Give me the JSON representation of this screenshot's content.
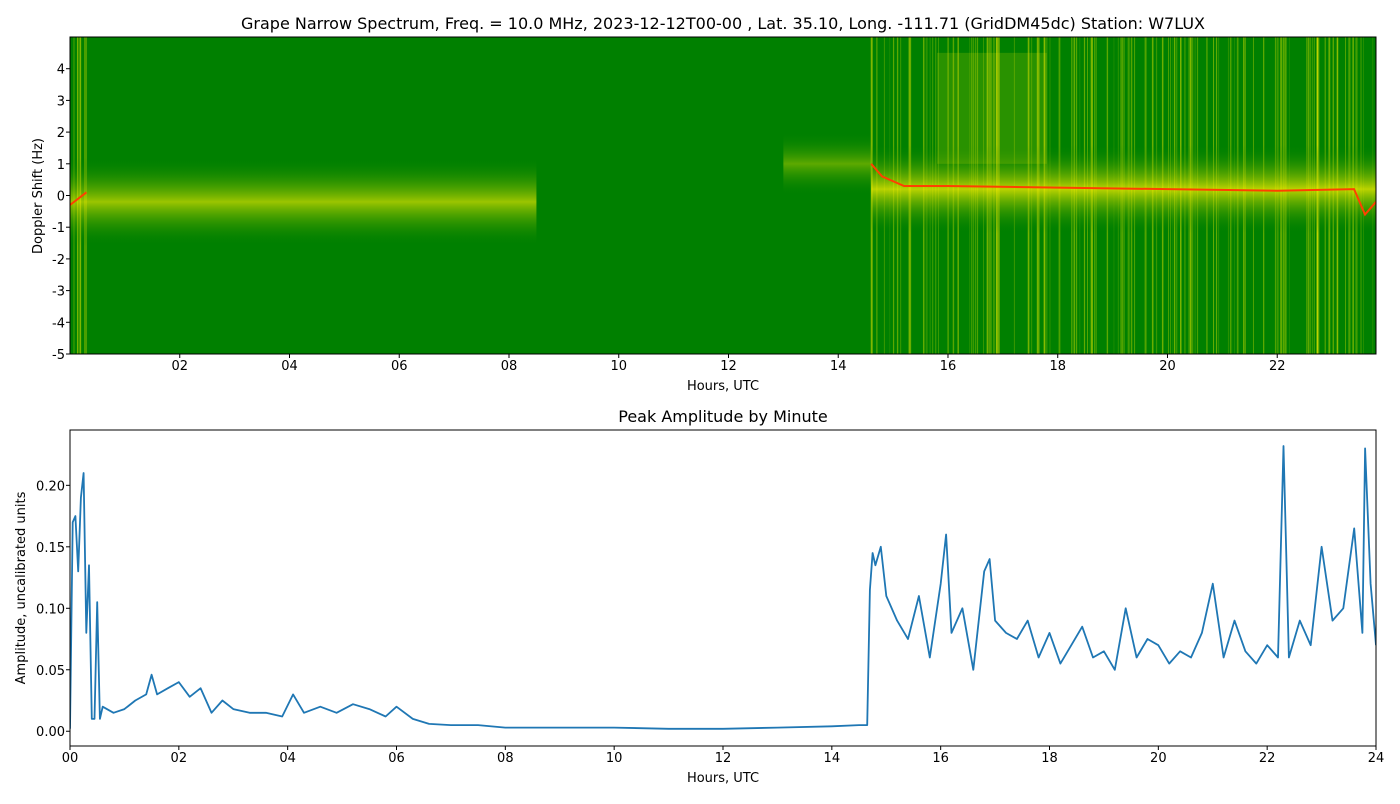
{
  "chart_data": [
    {
      "type": "heatmap",
      "title": "Grape Narrow Spectrum, Freq. = 10.0 MHz, 2023-12-12T00-00 , Lat.  35.10, Long. -111.71 (GridDM45dc) Station: W7LUX",
      "xlabel": "Hours, UTC",
      "ylabel": "Doppler Shift (Hz)",
      "xlim": [
        0,
        23.8
      ],
      "ylim": [
        -5,
        5
      ],
      "xticks": [
        "02",
        "04",
        "06",
        "08",
        "10",
        "12",
        "14",
        "16",
        "18",
        "20",
        "22"
      ],
      "yticks": [
        "-5",
        "-4",
        "-3",
        "-2",
        "-1",
        "0",
        "1",
        "2",
        "3",
        "4"
      ],
      "colors": {
        "background": "#008000",
        "mid": "#e6e600",
        "peak": "#ff4000"
      },
      "peak_doppler": {
        "x": [
          0,
          0.3,
          14.6,
          14.8,
          15.2,
          16,
          18,
          20,
          22,
          23.4,
          23.6,
          23.8
        ],
        "y": [
          -0.3,
          0.1,
          1.0,
          0.6,
          0.3,
          0.3,
          0.25,
          0.2,
          0.15,
          0.2,
          -0.6,
          -0.2
        ]
      }
    },
    {
      "type": "line",
      "title": "Peak Amplitude by Minute",
      "xlabel": "Hours, UTC",
      "ylabel": "Amplitude, uncalibrated units",
      "xlim": [
        0,
        24
      ],
      "ylim": [
        -0.012,
        0.245
      ],
      "xticks": [
        "00",
        "02",
        "04",
        "06",
        "08",
        "10",
        "12",
        "14",
        "16",
        "18",
        "20",
        "22",
        "24"
      ],
      "yticks": [
        "0.00",
        "0.05",
        "0.10",
        "0.15",
        "0.20"
      ],
      "color": "#1f77b4",
      "x": [
        0,
        0.05,
        0.1,
        0.15,
        0.2,
        0.25,
        0.3,
        0.35,
        0.4,
        0.45,
        0.5,
        0.55,
        0.6,
        0.8,
        1.0,
        1.2,
        1.4,
        1.5,
        1.6,
        1.8,
        2.0,
        2.2,
        2.4,
        2.6,
        2.8,
        3.0,
        3.3,
        3.6,
        3.9,
        4.1,
        4.3,
        4.6,
        4.9,
        5.2,
        5.5,
        5.8,
        6.0,
        6.3,
        6.6,
        7.0,
        7.5,
        8.0,
        9.0,
        10.0,
        11.0,
        12.0,
        13.0,
        14.0,
        14.5,
        14.65,
        14.7,
        14.75,
        14.8,
        14.9,
        15.0,
        15.2,
        15.4,
        15.6,
        15.8,
        16.0,
        16.1,
        16.2,
        16.4,
        16.6,
        16.8,
        16.9,
        17.0,
        17.2,
        17.4,
        17.6,
        17.8,
        18.0,
        18.2,
        18.4,
        18.6,
        18.8,
        19.0,
        19.2,
        19.4,
        19.6,
        19.8,
        20.0,
        20.2,
        20.4,
        20.6,
        20.8,
        21.0,
        21.2,
        21.4,
        21.6,
        21.8,
        22.0,
        22.2,
        22.3,
        22.4,
        22.6,
        22.8,
        23.0,
        23.2,
        23.4,
        23.6,
        23.75,
        23.8,
        23.9,
        24.0
      ],
      "y": [
        0.002,
        0.17,
        0.175,
        0.13,
        0.19,
        0.21,
        0.08,
        0.135,
        0.01,
        0.01,
        0.105,
        0.01,
        0.02,
        0.015,
        0.018,
        0.025,
        0.03,
        0.046,
        0.03,
        0.035,
        0.04,
        0.028,
        0.035,
        0.015,
        0.025,
        0.018,
        0.015,
        0.015,
        0.012,
        0.03,
        0.015,
        0.02,
        0.015,
        0.022,
        0.018,
        0.012,
        0.02,
        0.01,
        0.006,
        0.005,
        0.005,
        0.003,
        0.003,
        0.003,
        0.002,
        0.002,
        0.003,
        0.004,
        0.005,
        0.005,
        0.115,
        0.145,
        0.135,
        0.15,
        0.11,
        0.09,
        0.075,
        0.11,
        0.06,
        0.12,
        0.16,
        0.08,
        0.1,
        0.05,
        0.13,
        0.14,
        0.09,
        0.08,
        0.075,
        0.09,
        0.06,
        0.08,
        0.055,
        0.07,
        0.085,
        0.06,
        0.065,
        0.05,
        0.1,
        0.06,
        0.075,
        0.07,
        0.055,
        0.065,
        0.06,
        0.08,
        0.12,
        0.06,
        0.09,
        0.065,
        0.055,
        0.07,
        0.06,
        0.232,
        0.06,
        0.09,
        0.07,
        0.15,
        0.09,
        0.1,
        0.165,
        0.08,
        0.23,
        0.12,
        0.07
      ]
    }
  ]
}
